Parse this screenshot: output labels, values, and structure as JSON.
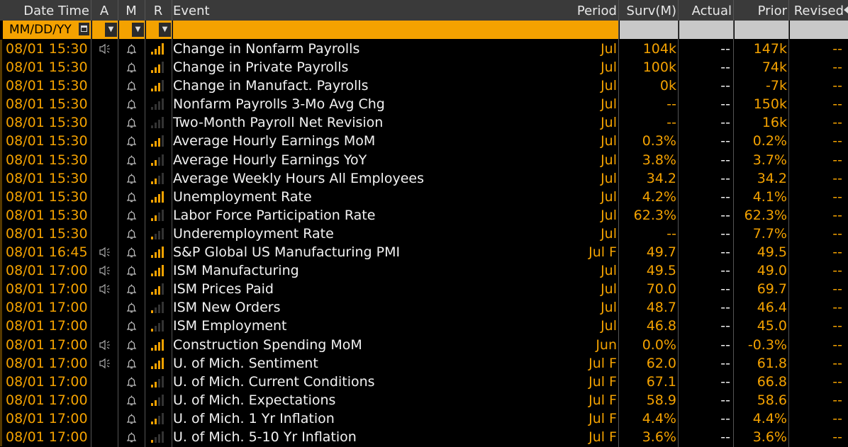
{
  "columns": {
    "date_time": "Date Time",
    "a": "A",
    "m": "M",
    "r": "R",
    "event": "Event",
    "period": "Period",
    "surv": "Surv(M)",
    "actual": "Actual",
    "prior": "Prior",
    "revised": "Revised"
  },
  "filter": {
    "date_placeholder": "MM/DD/YY"
  },
  "colors": {
    "amber": "#f4a200",
    "header_bg": "#3a3a3a",
    "text": "#f2f2f2"
  },
  "rows": [
    {
      "dt": "08/01 15:30",
      "alert": true,
      "event": "Change in Nonfarm Payrolls",
      "rel": 4,
      "period": "Jul",
      "surv": "104k",
      "actual": "--",
      "prior": "147k",
      "revised": "--"
    },
    {
      "dt": "08/01 15:30",
      "alert": false,
      "event": "Change in Private Payrolls",
      "rel": 3,
      "period": "Jul",
      "surv": "100k",
      "actual": "--",
      "prior": "74k",
      "revised": "--"
    },
    {
      "dt": "08/01 15:30",
      "alert": false,
      "event": "Change in Manufact. Payrolls",
      "rel": 3,
      "period": "Jul",
      "surv": "0k",
      "actual": "--",
      "prior": "-7k",
      "revised": "--"
    },
    {
      "dt": "08/01 15:30",
      "alert": false,
      "event": "Nonfarm Payrolls 3-Mo Avg Chg",
      "rel": 0,
      "period": "Jul",
      "surv": "--",
      "actual": "--",
      "prior": "150k",
      "revised": "--"
    },
    {
      "dt": "08/01 15:30",
      "alert": false,
      "event": "Two-Month Payroll Net Revision",
      "rel": 0,
      "period": "Jul",
      "surv": "--",
      "actual": "--",
      "prior": "16k",
      "revised": "--"
    },
    {
      "dt": "08/01 15:30",
      "alert": false,
      "event": "Average Hourly Earnings MoM",
      "rel": 3,
      "period": "Jul",
      "surv": "0.3%",
      "actual": "--",
      "prior": "0.2%",
      "revised": "--"
    },
    {
      "dt": "08/01 15:30",
      "alert": false,
      "event": "Average Hourly Earnings YoY",
      "rel": 2,
      "period": "Jul",
      "surv": "3.8%",
      "actual": "--",
      "prior": "3.7%",
      "revised": "--"
    },
    {
      "dt": "08/01 15:30",
      "alert": false,
      "event": "Average Weekly Hours All Employees",
      "rel": 2,
      "period": "Jul",
      "surv": "34.2",
      "actual": "--",
      "prior": "34.2",
      "revised": "--"
    },
    {
      "dt": "08/01 15:30",
      "alert": false,
      "event": "Unemployment Rate",
      "rel": 4,
      "period": "Jul",
      "surv": "4.2%",
      "actual": "--",
      "prior": "4.1%",
      "revised": "--"
    },
    {
      "dt": "08/01 15:30",
      "alert": false,
      "event": "Labor Force Participation Rate",
      "rel": 2,
      "period": "Jul",
      "surv": "62.3%",
      "actual": "--",
      "prior": "62.3%",
      "revised": "--"
    },
    {
      "dt": "08/01 15:30",
      "alert": false,
      "event": "Underemployment Rate",
      "rel": 1,
      "period": "Jul",
      "surv": "--",
      "actual": "--",
      "prior": "7.7%",
      "revised": "--"
    },
    {
      "dt": "08/01 16:45",
      "alert": true,
      "event": "S&P Global US Manufacturing PMI",
      "rel": 4,
      "period": "Jul F",
      "surv": "49.7",
      "actual": "--",
      "prior": "49.5",
      "revised": "--"
    },
    {
      "dt": "08/01 17:00",
      "alert": true,
      "event": "ISM Manufacturing",
      "rel": 4,
      "period": "Jul",
      "surv": "49.5",
      "actual": "--",
      "prior": "49.0",
      "revised": "--"
    },
    {
      "dt": "08/01 17:00",
      "alert": true,
      "event": "ISM Prices Paid",
      "rel": 3,
      "period": "Jul",
      "surv": "70.0",
      "actual": "--",
      "prior": "69.7",
      "revised": "--"
    },
    {
      "dt": "08/01 17:00",
      "alert": false,
      "event": "ISM New Orders",
      "rel": 1,
      "period": "Jul",
      "surv": "48.7",
      "actual": "--",
      "prior": "46.4",
      "revised": "--"
    },
    {
      "dt": "08/01 17:00",
      "alert": false,
      "event": "ISM Employment",
      "rel": 1,
      "period": "Jul",
      "surv": "46.8",
      "actual": "--",
      "prior": "45.0",
      "revised": "--"
    },
    {
      "dt": "08/01 17:00",
      "alert": true,
      "event": "Construction Spending MoM",
      "rel": 4,
      "period": "Jun",
      "surv": "0.0%",
      "actual": "--",
      "prior": "-0.3%",
      "revised": "--"
    },
    {
      "dt": "08/01 17:00",
      "alert": true,
      "event": "U. of Mich. Sentiment",
      "rel": 4,
      "period": "Jul F",
      "surv": "62.0",
      "actual": "--",
      "prior": "61.8",
      "revised": "--"
    },
    {
      "dt": "08/01 17:00",
      "alert": false,
      "event": "U. of Mich. Current Conditions",
      "rel": 2,
      "period": "Jul F",
      "surv": "67.1",
      "actual": "--",
      "prior": "66.8",
      "revised": "--"
    },
    {
      "dt": "08/01 17:00",
      "alert": false,
      "event": "U. of Mich. Expectations",
      "rel": 2,
      "period": "Jul F",
      "surv": "58.9",
      "actual": "--",
      "prior": "58.6",
      "revised": "--"
    },
    {
      "dt": "08/01 17:00",
      "alert": false,
      "event": "U. of Mich. 1 Yr Inflation",
      "rel": 2,
      "period": "Jul F",
      "surv": "4.4%",
      "actual": "--",
      "prior": "4.4%",
      "revised": "--"
    },
    {
      "dt": "08/01 17:00",
      "alert": false,
      "event": "U. of Mich. 5-10 Yr Inflation",
      "rel": 1,
      "period": "Jul F",
      "surv": "3.6%",
      "actual": "--",
      "prior": "3.6%",
      "revised": "--"
    }
  ]
}
